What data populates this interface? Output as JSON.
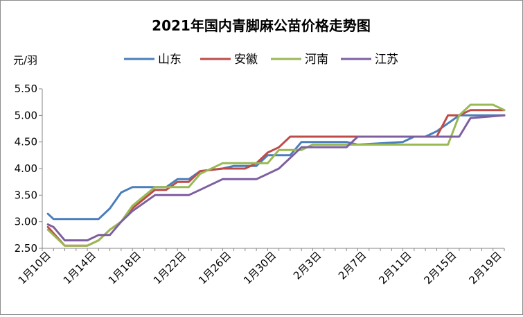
{
  "chart_data": {
    "type": "line",
    "title": "2021年国内青脚麻公苗价格走势图",
    "ylabel": "元/羽",
    "xlabel": "",
    "ylim": [
      2.5,
      5.5
    ],
    "y_ticks": [
      "2.50",
      "3.00",
      "3.50",
      "4.00",
      "4.50",
      "5.00",
      "5.50"
    ],
    "x_tick_labels": [
      "1月10日",
      "1月14日",
      "1月18日",
      "1月22日",
      "1月26日",
      "1月30日",
      "2月3日",
      "2月7日",
      "2月11日",
      "2月15日",
      "2月19日"
    ],
    "x_tick_positions": [
      0,
      4,
      8,
      12,
      16,
      20,
      24,
      28,
      32,
      36,
      40
    ],
    "grid": false,
    "legend_position": "top",
    "series": [
      {
        "name": "山东",
        "color": "#4a7ebb",
        "x": [
          0,
          0.5,
          4.5,
          5.5,
          6.5,
          7.5,
          10.5,
          11.5,
          12.5,
          13.5,
          15.5,
          16.5,
          18.5,
          19.5,
          21.5,
          22.5,
          26.5,
          27.5,
          31.5,
          32.5,
          33.5,
          34.5,
          35.5,
          36.5,
          37.5,
          40.5
        ],
        "y": [
          3.15,
          3.05,
          3.05,
          3.25,
          3.55,
          3.65,
          3.65,
          3.8,
          3.8,
          3.95,
          4.0,
          4.05,
          4.05,
          4.25,
          4.25,
          4.5,
          4.5,
          4.45,
          4.5,
          4.6,
          4.6,
          4.7,
          4.85,
          5.0,
          5.0,
          5.0
        ]
      },
      {
        "name": "安徽",
        "color": "#be4b48",
        "x": [
          0,
          1.5,
          3.5,
          4.5,
          5.5,
          6.5,
          7.5,
          9.5,
          10.5,
          11.5,
          12.5,
          13.5,
          15.5,
          16.5,
          17.5,
          18.5,
          19.5,
          20.5,
          21.5,
          22.5,
          29.5,
          30.5,
          31.5,
          32.5,
          33.5,
          34.5,
          35.5,
          36.5,
          37.5,
          40.5
        ],
        "y": [
          2.9,
          2.55,
          2.55,
          2.65,
          2.85,
          3.0,
          3.25,
          3.6,
          3.6,
          3.75,
          3.75,
          3.95,
          4.0,
          4.0,
          4.0,
          4.1,
          4.3,
          4.4,
          4.6,
          4.6,
          4.6,
          4.6,
          4.6,
          4.6,
          4.6,
          4.6,
          5.0,
          5.0,
          5.1,
          5.1
        ]
      },
      {
        "name": "河南",
        "color": "#98b954",
        "x": [
          0,
          1.5,
          3.5,
          4.5,
          5.5,
          6.5,
          7.5,
          9.5,
          10.5,
          11.5,
          12.5,
          13.5,
          15.5,
          16.5,
          17.5,
          18.5,
          19.5,
          20.5,
          21.5,
          22.5,
          23.5,
          32.5,
          33.5,
          34.5,
          35.5,
          36.5,
          37.5,
          39.5,
          40.5
        ],
        "y": [
          2.85,
          2.55,
          2.55,
          2.65,
          2.85,
          3.0,
          3.3,
          3.65,
          3.65,
          3.65,
          3.65,
          3.9,
          4.1,
          4.1,
          4.1,
          4.1,
          4.1,
          4.35,
          4.35,
          4.35,
          4.45,
          4.45,
          4.45,
          4.45,
          4.45,
          5.0,
          5.2,
          5.2,
          5.1
        ]
      },
      {
        "name": "江苏",
        "color": "#7d5fa0",
        "x": [
          0,
          0.5,
          1.5,
          3.5,
          4.5,
          5.5,
          6.5,
          7.5,
          9.5,
          10.5,
          11.5,
          12.5,
          13.5,
          15.5,
          16.5,
          17.5,
          18.5,
          19.5,
          20.5,
          21.5,
          22.5,
          24.5,
          25.5,
          26.5,
          27.5,
          31.5,
          32.5,
          33.5,
          34.5,
          35.5,
          36.5,
          37.5,
          40.5
        ],
        "y": [
          2.95,
          2.9,
          2.65,
          2.65,
          2.75,
          2.75,
          3.0,
          3.2,
          3.5,
          3.5,
          3.5,
          3.5,
          3.6,
          3.8,
          3.8,
          3.8,
          3.8,
          3.9,
          4.0,
          4.2,
          4.4,
          4.4,
          4.4,
          4.4,
          4.6,
          4.6,
          4.6,
          4.6,
          4.6,
          4.6,
          4.6,
          4.95,
          5.0
        ]
      }
    ]
  }
}
